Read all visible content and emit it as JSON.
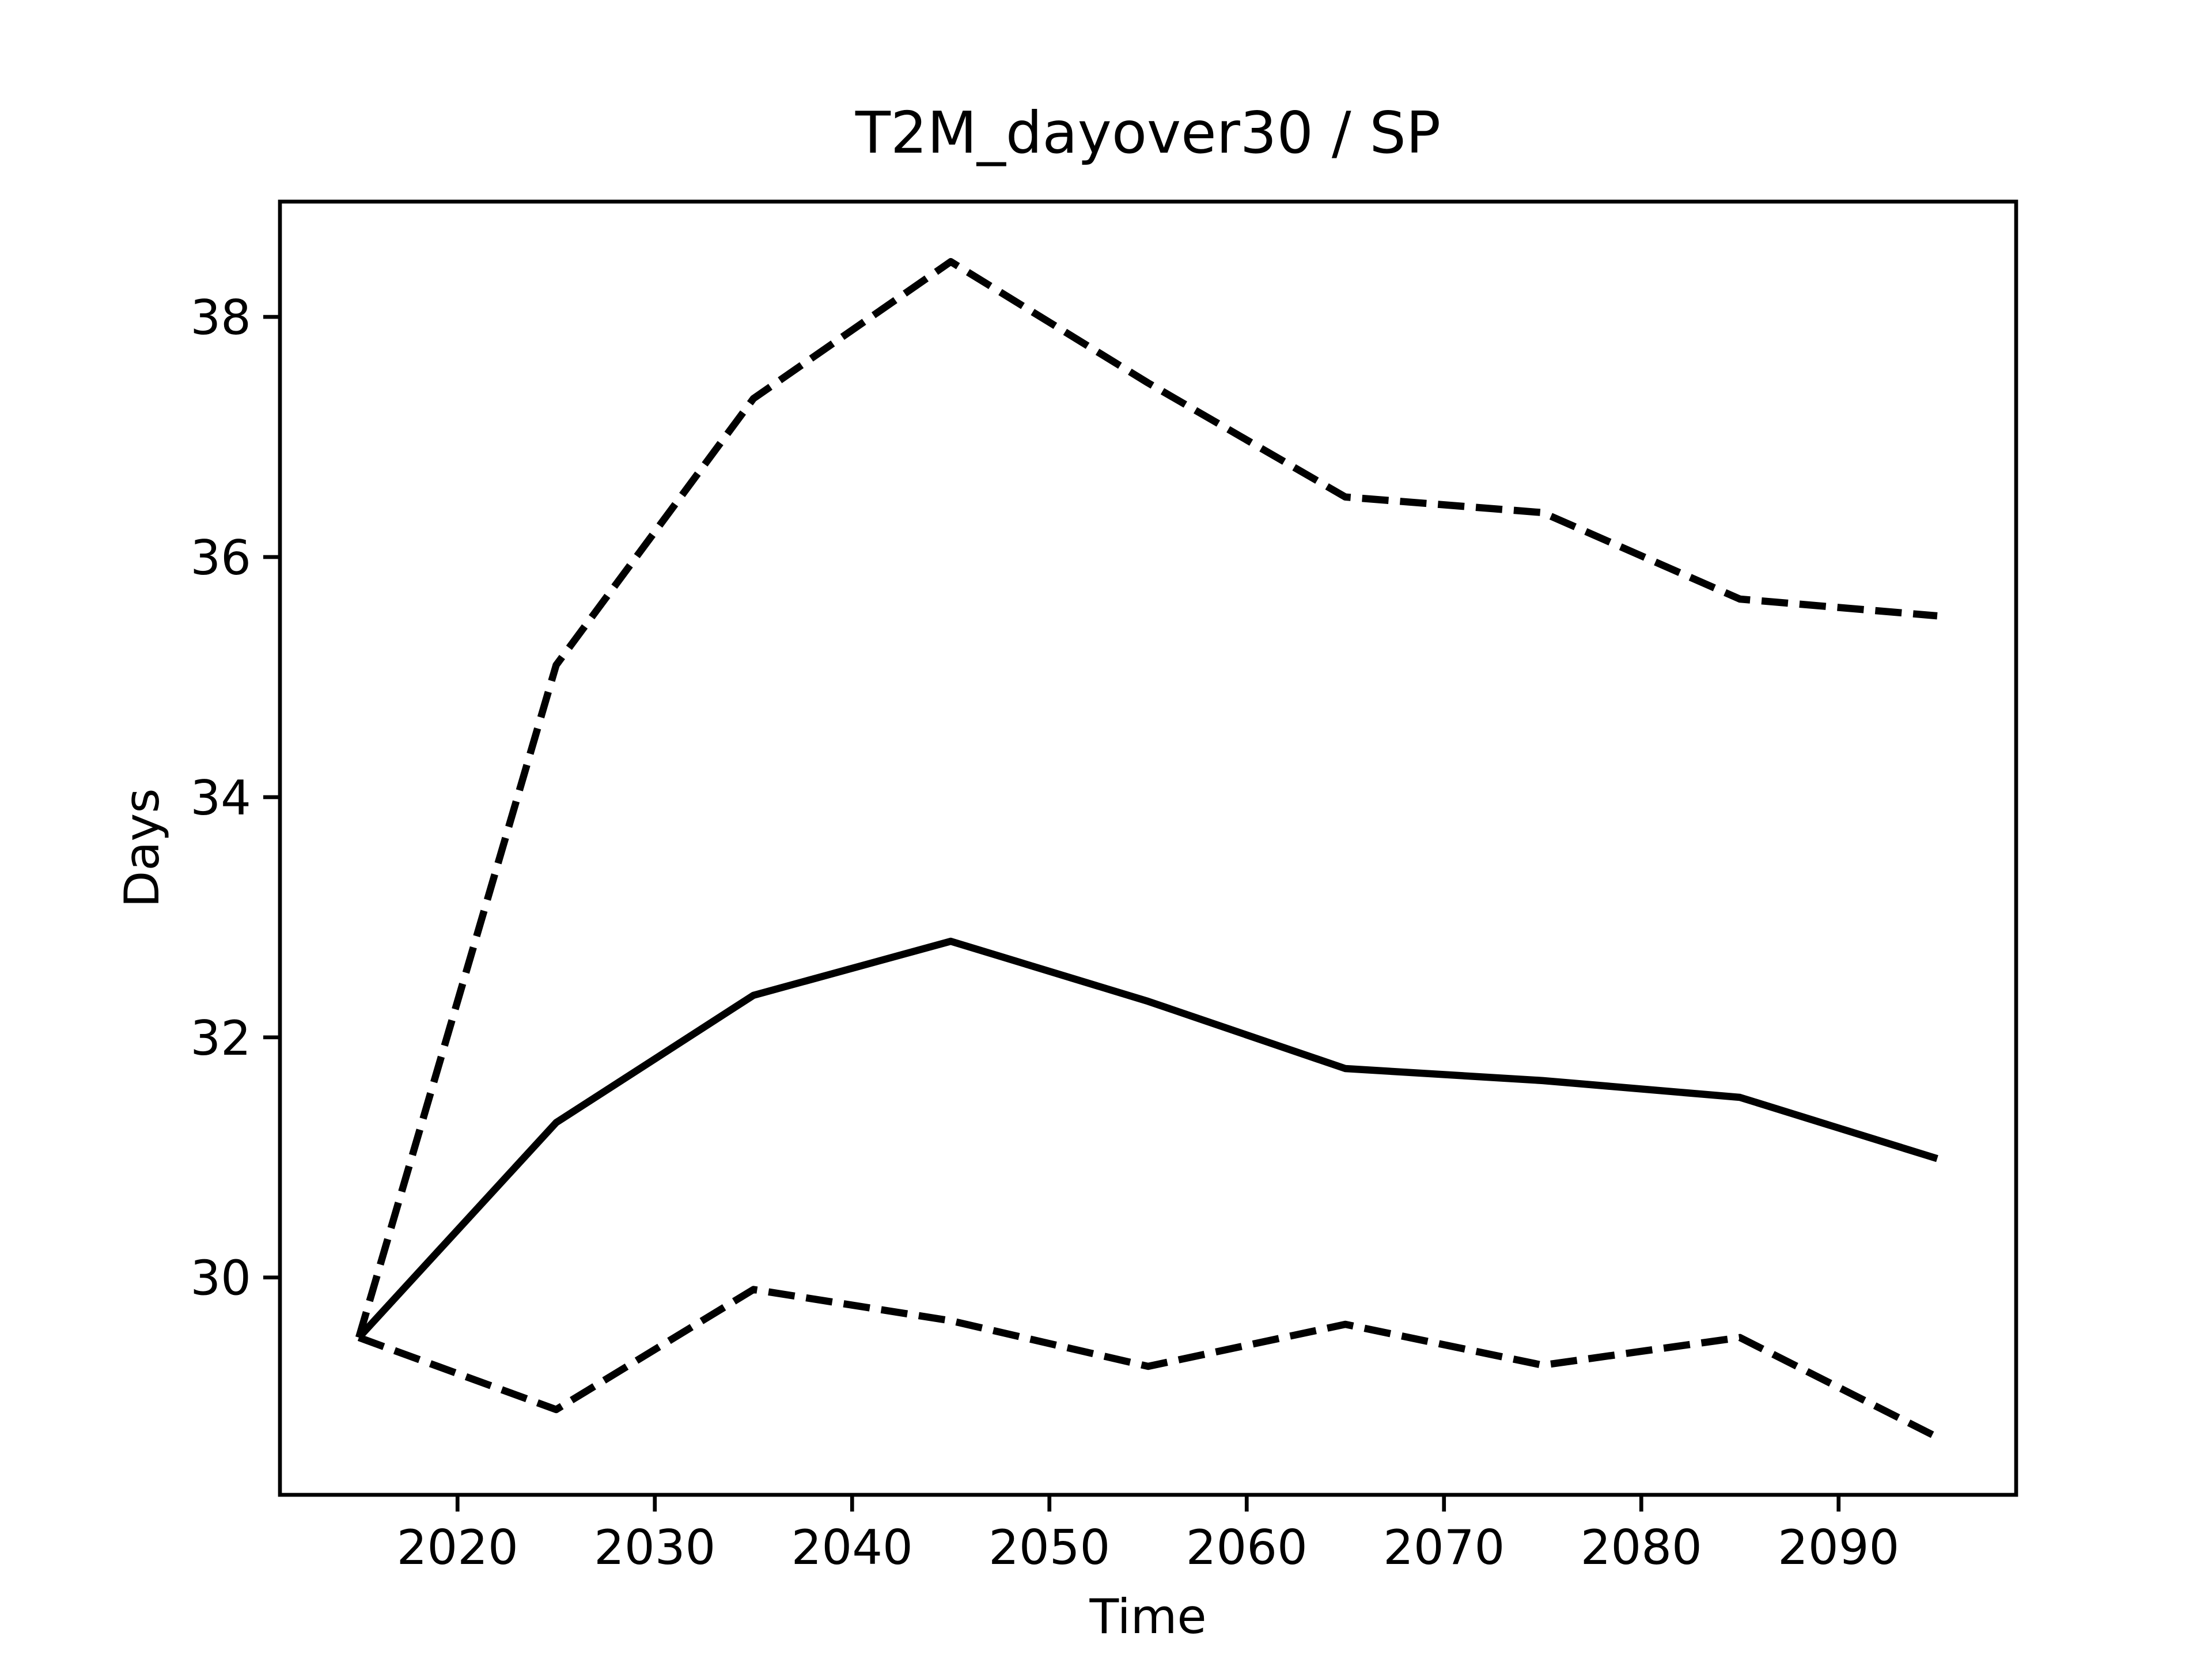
{
  "chart_data": {
    "type": "line",
    "title": "T2M_dayover30 / SP",
    "xlabel": "Time",
    "ylabel": "Days",
    "x": [
      2015,
      2025,
      2035,
      2045,
      2055,
      2065,
      2075,
      2085,
      2095
    ],
    "series": [
      {
        "color": "#000000",
        "linestyle": "dashed",
        "values": [
          29.5,
          35.1,
          37.32,
          38.46,
          37.45,
          36.5,
          36.37,
          35.65,
          35.51
        ]
      },
      {
        "color": "#000000",
        "linestyle": "solid",
        "values": [
          29.5,
          31.29,
          32.35,
          32.8,
          32.3,
          31.74,
          31.64,
          31.5,
          30.99
        ]
      },
      {
        "color": "#000000",
        "linestyle": "dashed",
        "values": [
          29.5,
          28.9,
          29.9,
          29.64,
          29.26,
          29.61,
          29.27,
          29.5,
          28.67
        ]
      }
    ],
    "xlim": [
      2011,
      2099
    ],
    "ylim": [
      28.19,
      38.96
    ],
    "xticks": [
      2020,
      2030,
      2040,
      2050,
      2060,
      2070,
      2080,
      2090
    ],
    "yticks": [
      30,
      32,
      34,
      36,
      38
    ],
    "grid": false
  }
}
